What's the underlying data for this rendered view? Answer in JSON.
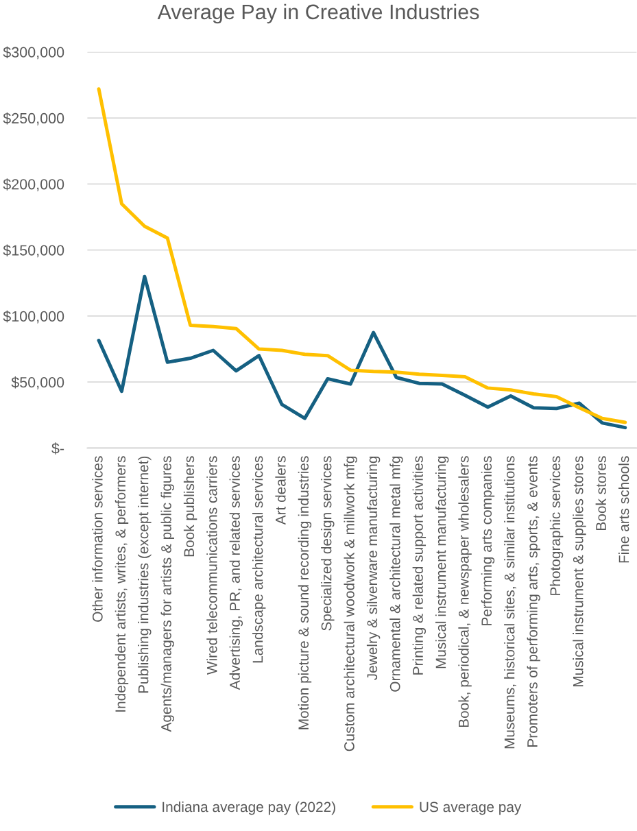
{
  "chart_data": {
    "type": "line",
    "title": "Average Pay in Creative Industries",
    "categories": [
      "Other information services",
      "Independent artists, writes, & performers",
      "Publishing industries (except internet)",
      "Agents/managers for artists & public figures",
      "Book publishers",
      "Wired telecommunications carriers",
      "Advertising, PR, and related services",
      "Landscape architectural services",
      "Art dealers",
      "Motion picture & sound recording industries",
      "Specialized design services",
      "Custom architectural woodwork & millwork mfg",
      "Jewelry & silverware manufacturing",
      "Ornamental & architectural metal mfg",
      "Printing & related support activities",
      "Musical instrument manufacturing",
      "Book, periodical, & newspaper wholesalers",
      "Performing arts companies",
      "Museums, historical sites, & similar institutions",
      "Promoters of performing arts, sports, & events",
      "Photographic services",
      "Musical instrument & supplies stores",
      "Book stores",
      "Fine arts schools"
    ],
    "series": [
      {
        "name": "Indiana average pay (2022)",
        "color": "#156082",
        "values": [
          81500,
          43000,
          130000,
          65000,
          68000,
          74000,
          58500,
          70000,
          33000,
          22500,
          52500,
          48500,
          87500,
          53500,
          49000,
          48500,
          40000,
          31000,
          39500,
          30500,
          30000,
          34000,
          19000,
          15500
        ]
      },
      {
        "name": "US average pay",
        "color": "#ffc000",
        "values": [
          272000,
          185000,
          168000,
          159000,
          93000,
          92000,
          90500,
          75000,
          74000,
          71000,
          70000,
          59000,
          58000,
          57500,
          56000,
          55000,
          54000,
          45500,
          44000,
          41000,
          39000,
          30500,
          22500,
          19500
        ]
      }
    ],
    "ylim": [
      0,
      300000
    ],
    "yticks": [
      {
        "value": 0,
        "label": "$-"
      },
      {
        "value": 50000,
        "label": "$50,000"
      },
      {
        "value": 100000,
        "label": "$100,000"
      },
      {
        "value": 150000,
        "label": "$150,000"
      },
      {
        "value": 200000,
        "label": "$200,000"
      },
      {
        "value": 250000,
        "label": "$250,000"
      },
      {
        "value": 300000,
        "label": "$300,000"
      }
    ],
    "grid": "y",
    "legend": "bottom",
    "line_style": "solid"
  }
}
